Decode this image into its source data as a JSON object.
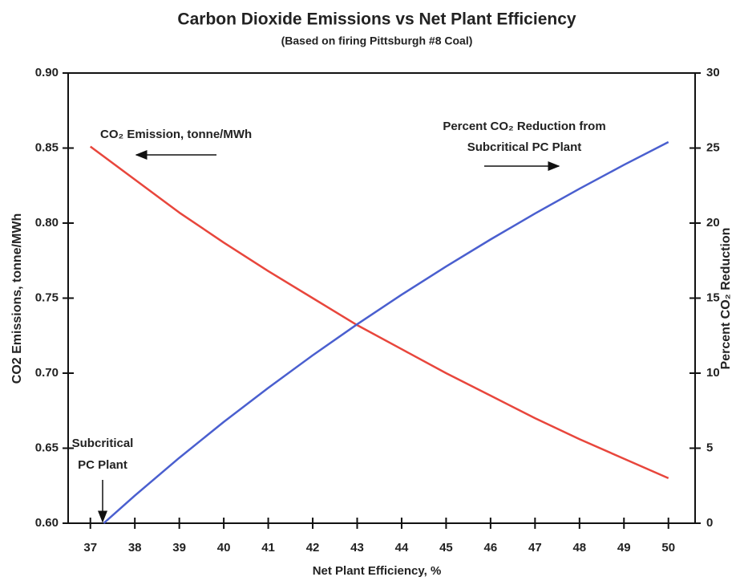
{
  "chart_data": {
    "type": "line",
    "title": "Carbon Dioxide Emissions vs Net Plant Efficiency",
    "subtitle": "(Based on firing Pittsburgh #8 Coal)",
    "x_label": "Net Plant Efficiency, %",
    "y_label": "CO2 Emissions, tonne/MWh",
    "y2_label": "Percent CO₂ Reduction",
    "annotations": [
      "CO₂ Emission, tonne/MWh",
      "Percent CO₂ Reduction from",
      "Subcritical PC Plant",
      "Subcritical",
      "PC Plant"
    ],
    "xlim": [
      36.5,
      50.6
    ],
    "xticks": [
      37,
      38,
      39,
      40,
      41,
      42,
      43,
      44,
      45,
      46,
      47,
      48,
      49,
      50
    ],
    "ylim": [
      0.6,
      0.9
    ],
    "yticks": [
      {
        "value": 0.6,
        "label": "0.60"
      },
      {
        "value": 0.65,
        "label": "0.65"
      },
      {
        "value": 0.7,
        "label": "0.70"
      },
      {
        "value": 0.75,
        "label": "0.75"
      },
      {
        "value": 0.8,
        "label": "0.80"
      },
      {
        "value": 0.85,
        "label": "0.85"
      },
      {
        "value": 0.9,
        "label": "0.90"
      }
    ],
    "y2lim": [
      0,
      30
    ],
    "y2ticks": [
      0,
      5,
      10,
      15,
      20,
      25,
      30
    ],
    "grid": false,
    "series": [
      {
        "color": "#e8463c",
        "axis": "y",
        "x": [
          37,
          38,
          39,
          40,
          41,
          42,
          43,
          44,
          45,
          46,
          47,
          48,
          49,
          50
        ],
        "values": [
          0.851,
          0.829,
          0.807,
          0.787,
          0.768,
          0.75,
          0.732,
          0.716,
          0.7,
          0.685,
          0.67,
          0.656,
          0.643,
          0.63
        ]
      },
      {
        "color": "#4a5fcf",
        "axis": "y2",
        "x": [
          37.3,
          38,
          39,
          40,
          41,
          42,
          43,
          44,
          45,
          46,
          47,
          48,
          49,
          50
        ],
        "values": [
          0,
          1.84,
          4.36,
          6.75,
          9.02,
          11.19,
          13.26,
          15.23,
          17.11,
          18.91,
          20.64,
          22.29,
          23.88,
          25.4
        ]
      }
    ]
  }
}
